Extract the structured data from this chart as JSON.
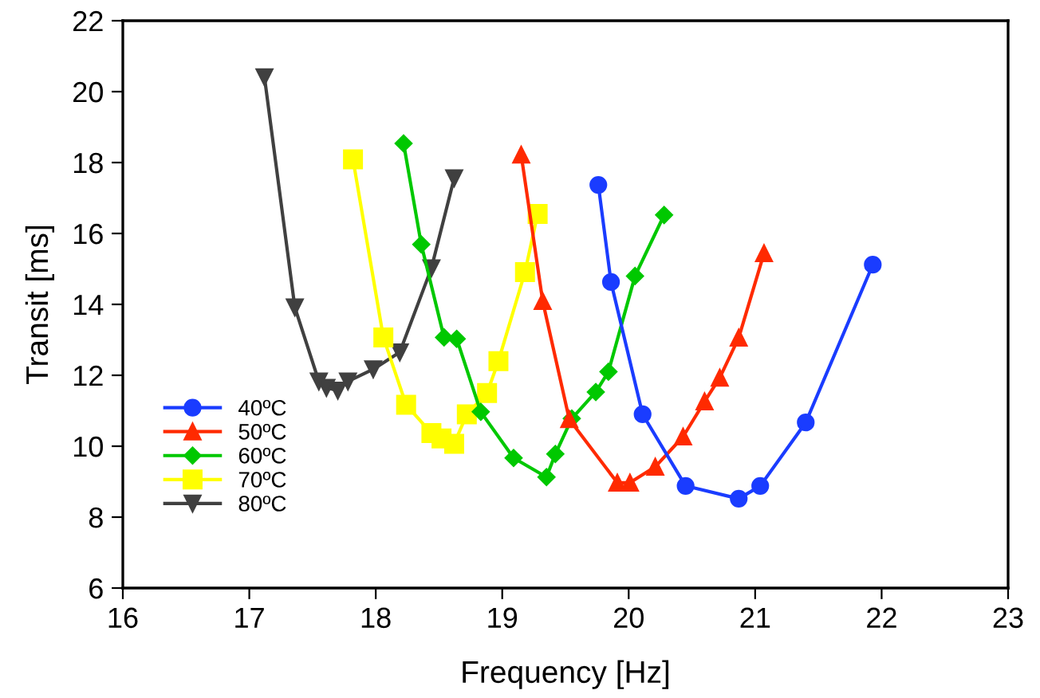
{
  "chart_data": {
    "type": "line",
    "xlabel": "Frequency [Hz]",
    "ylabel": "Transit [ms]",
    "xlim": [
      16,
      23
    ],
    "xticks": [
      16,
      17,
      18,
      19,
      20,
      21,
      22,
      23
    ],
    "ylim": [
      6,
      22
    ],
    "yticks": [
      6,
      8,
      10,
      12,
      14,
      16,
      18,
      20,
      22
    ],
    "grid": false,
    "legend": "bottom left",
    "series": [
      {
        "name": "40ºC",
        "color": "#1a3cff",
        "marker": "circle",
        "x": [
          19.76,
          19.86,
          20.11,
          20.45,
          20.87,
          21.04,
          21.4,
          21.93
        ],
        "values": [
          17.37,
          14.63,
          10.9,
          8.88,
          8.52,
          8.88,
          10.67,
          15.12
        ]
      },
      {
        "name": "50ºC",
        "color": "#ff2a00",
        "marker": "triangle",
        "x": [
          19.15,
          19.32,
          19.53,
          19.91,
          20.01,
          20.21,
          20.43,
          20.6,
          20.72,
          20.87,
          21.07
        ],
        "values": [
          18.22,
          14.09,
          10.76,
          8.97,
          8.97,
          9.42,
          10.27,
          11.26,
          11.93,
          13.06,
          15.44
        ]
      },
      {
        "name": "60ºC",
        "color": "#00c800",
        "marker": "diamond",
        "x": [
          18.22,
          18.36,
          18.54,
          18.64,
          18.83,
          19.09,
          19.35,
          19.42,
          19.55,
          19.74,
          19.84,
          20.05,
          20.28
        ],
        "values": [
          18.54,
          15.69,
          13.07,
          13.03,
          10.97,
          9.67,
          9.13,
          9.78,
          10.78,
          11.53,
          12.1,
          14.8,
          16.52
        ]
      },
      {
        "name": "70ºC",
        "color": "#ffff00",
        "marker": "square",
        "x": [
          17.82,
          18.06,
          18.24,
          18.44,
          18.52,
          18.62,
          18.72,
          18.88,
          18.97,
          19.18,
          19.28
        ],
        "values": [
          18.09,
          13.07,
          11.17,
          10.37,
          10.22,
          10.07,
          10.9,
          11.5,
          12.4,
          14.91,
          16.55
        ]
      },
      {
        "name": "80ºC",
        "color": "#404040",
        "marker": "triangle_down",
        "x": [
          17.12,
          17.36,
          17.55,
          17.61,
          17.7,
          17.78,
          17.98,
          18.19,
          18.44,
          18.62
        ],
        "values": [
          20.41,
          13.92,
          11.83,
          11.65,
          11.57,
          11.83,
          12.17,
          12.65,
          15.02,
          17.56
        ]
      }
    ]
  }
}
